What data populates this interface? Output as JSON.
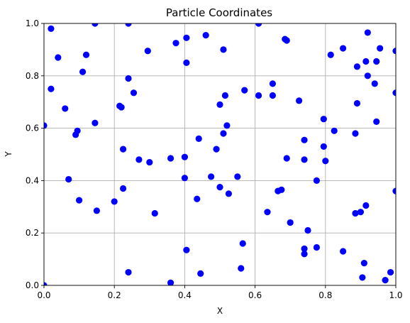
{
  "chart_data": {
    "type": "scatter",
    "title": "Particle Coordinates",
    "xlabel": "X",
    "ylabel": "Y",
    "xlim": [
      0,
      1
    ],
    "ylim": [
      0,
      1
    ],
    "grid": true,
    "color": "#0000ff",
    "x_ticks": [
      "0.0",
      "0.2",
      "0.4",
      "0.6",
      "0.8",
      "1.0"
    ],
    "y_ticks": [
      "0.0",
      "0.2",
      "0.4",
      "0.6",
      "0.8",
      "1.0"
    ],
    "series": [
      {
        "points": [
          [
            0.02,
            0.98
          ],
          [
            0.04,
            0.87
          ],
          [
            0.02,
            0.75
          ],
          [
            0.06,
            0.675
          ],
          [
            0.0,
            0.61
          ],
          [
            0.0,
            0.0
          ],
          [
            0.07,
            0.405
          ],
          [
            0.1,
            0.325
          ],
          [
            0.09,
            0.575
          ],
          [
            0.095,
            0.59
          ],
          [
            0.11,
            0.815
          ],
          [
            0.12,
            0.88
          ],
          [
            0.145,
            1.0
          ],
          [
            0.145,
            0.62
          ],
          [
            0.15,
            0.285
          ],
          [
            0.2,
            0.32
          ],
          [
            0.215,
            0.685
          ],
          [
            0.22,
            0.68
          ],
          [
            0.225,
            0.52
          ],
          [
            0.225,
            0.37
          ],
          [
            0.24,
            0.05
          ],
          [
            0.24,
            1.0
          ],
          [
            0.24,
            0.79
          ],
          [
            0.255,
            0.735
          ],
          [
            0.27,
            0.48
          ],
          [
            0.295,
            0.895
          ],
          [
            0.3,
            0.47
          ],
          [
            0.315,
            0.275
          ],
          [
            0.36,
            0.485
          ],
          [
            0.36,
            0.01
          ],
          [
            0.375,
            0.925
          ],
          [
            0.4,
            0.49
          ],
          [
            0.4,
            0.41
          ],
          [
            0.405,
            0.85
          ],
          [
            0.405,
            0.945
          ],
          [
            0.405,
            0.135
          ],
          [
            0.435,
            0.33
          ],
          [
            0.44,
            0.56
          ],
          [
            0.445,
            0.045
          ],
          [
            0.46,
            0.955
          ],
          [
            0.475,
            0.415
          ],
          [
            0.49,
            0.52
          ],
          [
            0.5,
            0.375
          ],
          [
            0.5,
            0.69
          ],
          [
            0.51,
            0.58
          ],
          [
            0.51,
            0.9
          ],
          [
            0.515,
            0.725
          ],
          [
            0.52,
            0.61
          ],
          [
            0.525,
            0.35
          ],
          [
            0.55,
            0.415
          ],
          [
            0.56,
            0.065
          ],
          [
            0.565,
            0.16
          ],
          [
            0.57,
            0.745
          ],
          [
            0.61,
            1.0
          ],
          [
            0.61,
            0.725
          ],
          [
            0.635,
            0.28
          ],
          [
            0.65,
            0.725
          ],
          [
            0.65,
            0.77
          ],
          [
            0.665,
            0.36
          ],
          [
            0.675,
            0.365
          ],
          [
            0.685,
            0.94
          ],
          [
            0.69,
            0.935
          ],
          [
            0.69,
            0.485
          ],
          [
            0.7,
            0.24
          ],
          [
            0.725,
            0.705
          ],
          [
            0.74,
            0.14
          ],
          [
            0.74,
            0.12
          ],
          [
            0.74,
            0.555
          ],
          [
            0.74,
            0.48
          ],
          [
            0.75,
            0.21
          ],
          [
            0.775,
            0.145
          ],
          [
            0.775,
            0.4
          ],
          [
            0.795,
            0.53
          ],
          [
            0.795,
            0.635
          ],
          [
            0.8,
            0.475
          ],
          [
            0.815,
            0.88
          ],
          [
            0.825,
            0.59
          ],
          [
            0.85,
            0.905
          ],
          [
            0.85,
            0.13
          ],
          [
            0.885,
            0.58
          ],
          [
            0.885,
            0.275
          ],
          [
            0.89,
            0.835
          ],
          [
            0.89,
            0.695
          ],
          [
            0.9,
            0.28
          ],
          [
            0.905,
            0.03
          ],
          [
            0.91,
            0.085
          ],
          [
            0.915,
            0.305
          ],
          [
            0.915,
            0.855
          ],
          [
            0.92,
            0.965
          ],
          [
            0.92,
            0.8
          ],
          [
            0.94,
            0.77
          ],
          [
            0.945,
            0.855
          ],
          [
            0.945,
            0.625
          ],
          [
            0.955,
            0.905
          ],
          [
            0.97,
            0.02
          ],
          [
            0.985,
            0.05
          ],
          [
            1.0,
            0.895
          ],
          [
            1.0,
            0.735
          ],
          [
            1.0,
            0.36
          ]
        ]
      }
    ]
  }
}
